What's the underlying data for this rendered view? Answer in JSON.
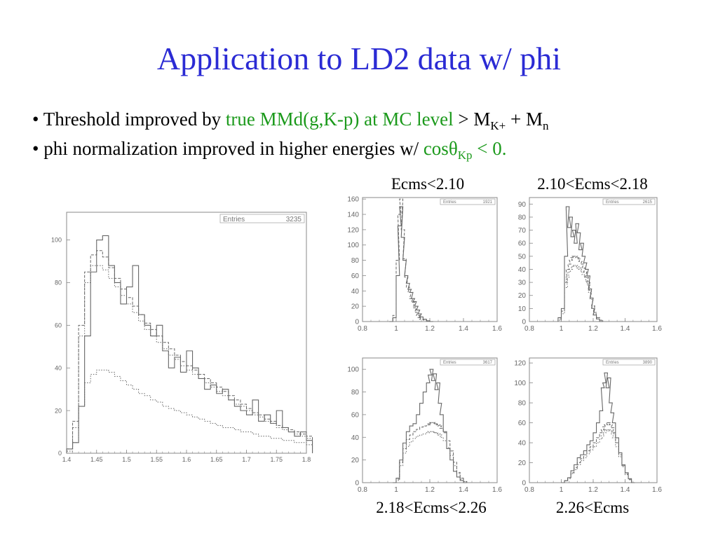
{
  "slide": {
    "title": "Application to LD2 data w/ phi",
    "bullet1": {
      "prefix": "• Threshold improved by ",
      "green_text": "true MMd(g,K-p) at MC level",
      "relation": " > M",
      "sub1": "K+",
      "plus": " + M",
      "sub2": "n"
    },
    "bullet2": {
      "prefix": "• phi normalization improved in higher energies w/ ",
      "green_text": "cosθ",
      "green_sub": "Kp",
      "green_tail": " < 0."
    }
  },
  "colors": {
    "title": "#2b2bd4",
    "green": "#1c9a1c",
    "hist": "#666666",
    "frame": "#888888"
  },
  "chart_data": [
    {
      "id": "large",
      "type": "histogram",
      "label": "",
      "stat_name": "Entries",
      "stat_value": "3235",
      "xlim": [
        1.4,
        1.8
      ],
      "ylim": [
        0,
        113
      ],
      "xticks": [
        "1.4",
        "1.45",
        "1.5",
        "1.55",
        "1.6",
        "1.65",
        "1.7",
        "1.75",
        "1.8"
      ],
      "yticks": [
        "0",
        "20",
        "40",
        "60",
        "80",
        "100"
      ],
      "series": [
        {
          "style": "solid",
          "x": [
            1.4,
            1.41,
            1.42,
            1.43,
            1.44,
            1.45,
            1.46,
            1.47,
            1.48,
            1.49,
            1.5,
            1.51,
            1.52,
            1.53,
            1.54,
            1.55,
            1.56,
            1.57,
            1.58,
            1.59,
            1.6,
            1.61,
            1.62,
            1.63,
            1.64,
            1.65,
            1.66,
            1.67,
            1.68,
            1.69,
            1.7,
            1.71,
            1.72,
            1.73,
            1.74,
            1.75,
            1.76,
            1.77,
            1.78,
            1.79,
            1.8
          ],
          "y": [
            2,
            5,
            22,
            55,
            85,
            100,
            102,
            88,
            80,
            70,
            78,
            88,
            65,
            60,
            55,
            60,
            48,
            40,
            45,
            38,
            48,
            40,
            35,
            30,
            32,
            28,
            30,
            25,
            22,
            20,
            18,
            25,
            15,
            18,
            14,
            20,
            12,
            10,
            8,
            10,
            6
          ]
        },
        {
          "style": "dashed",
          "x": [
            1.4,
            1.41,
            1.42,
            1.43,
            1.44,
            1.45,
            1.46,
            1.47,
            1.48,
            1.49,
            1.5,
            1.51,
            1.52,
            1.53,
            1.54,
            1.55,
            1.56,
            1.57,
            1.58,
            1.59,
            1.6,
            1.61,
            1.62,
            1.63,
            1.64,
            1.65,
            1.66,
            1.67,
            1.68,
            1.69,
            1.7,
            1.71,
            1.72,
            1.73,
            1.74,
            1.75,
            1.76,
            1.77,
            1.78,
            1.79,
            1.8
          ],
          "y": [
            2,
            15,
            60,
            85,
            93,
            95,
            92,
            87,
            82,
            77,
            73,
            69,
            65,
            61,
            58,
            55,
            52,
            49,
            46,
            43,
            41,
            39,
            37,
            35,
            33,
            31,
            29,
            27,
            25,
            23,
            21,
            19,
            18,
            16,
            15,
            13,
            12,
            11,
            10,
            9,
            8
          ]
        },
        {
          "style": "dotted",
          "x": [
            1.4,
            1.41,
            1.42,
            1.43,
            1.44,
            1.45,
            1.46,
            1.47,
            1.48,
            1.49,
            1.5,
            1.51,
            1.52,
            1.53,
            1.54,
            1.55,
            1.56,
            1.57,
            1.58,
            1.59,
            1.6,
            1.61,
            1.62,
            1.63,
            1.64,
            1.65,
            1.66,
            1.67,
            1.68,
            1.69,
            1.7,
            1.71,
            1.72,
            1.73,
            1.74,
            1.75,
            1.76,
            1.77,
            1.78,
            1.79,
            1.8
          ],
          "y": [
            1,
            12,
            55,
            80,
            88,
            88,
            86,
            82,
            78,
            74,
            70,
            66,
            62,
            58,
            55,
            52,
            49,
            46,
            44,
            41,
            39,
            37,
            35,
            33,
            31,
            29,
            27,
            25,
            23,
            22,
            20,
            18,
            17,
            15,
            14,
            12,
            11,
            10,
            9,
            8,
            7
          ]
        },
        {
          "style": "dotted",
          "x": [
            1.4,
            1.41,
            1.42,
            1.43,
            1.44,
            1.45,
            1.46,
            1.47,
            1.48,
            1.49,
            1.5,
            1.51,
            1.52,
            1.53,
            1.54,
            1.55,
            1.56,
            1.57,
            1.58,
            1.59,
            1.6,
            1.61,
            1.62,
            1.63,
            1.64,
            1.65,
            1.66,
            1.67,
            1.68,
            1.69,
            1.7,
            1.71,
            1.72,
            1.73,
            1.74,
            1.75,
            1.76,
            1.77,
            1.78,
            1.79,
            1.8
          ],
          "y": [
            1,
            5,
            22,
            33,
            37,
            39,
            39,
            38,
            36,
            34,
            32,
            30,
            28,
            27,
            25,
            24,
            22,
            21,
            20,
            19,
            18,
            17,
            16,
            15,
            14,
            13,
            12,
            12,
            11,
            10,
            10,
            9,
            8,
            8,
            7,
            7,
            6,
            6,
            5,
            5,
            4
          ]
        }
      ]
    },
    {
      "id": "p1",
      "type": "histogram",
      "label": "Ecms<2.10",
      "stat_name": "Entries",
      "stat_value": "1921",
      "xlim": [
        0.8,
        1.6
      ],
      "ylim": [
        0,
        162
      ],
      "xticks": [
        "0.8",
        "1",
        "1.2",
        "1.4",
        "1.6"
      ],
      "yticks": [
        "0",
        "20",
        "40",
        "60",
        "80",
        "100",
        "120",
        "140",
        "160"
      ],
      "series": [
        {
          "style": "solid",
          "x": [
            0.96,
            0.98,
            1.0,
            1.01,
            1.02,
            1.03,
            1.04,
            1.05,
            1.06,
            1.07,
            1.08,
            1.09,
            1.1,
            1.11,
            1.12,
            1.13,
            1.14,
            1.16,
            1.18,
            1.2
          ],
          "y": [
            0,
            5,
            60,
            125,
            150,
            110,
            80,
            60,
            50,
            42,
            38,
            30,
            26,
            20,
            15,
            10,
            6,
            3,
            1,
            0
          ]
        },
        {
          "style": "dashed",
          "x": [
            0.96,
            0.98,
            1.0,
            1.01,
            1.02,
            1.03,
            1.04,
            1.05,
            1.06,
            1.07,
            1.08,
            1.09,
            1.1,
            1.11,
            1.12,
            1.13,
            1.14,
            1.16,
            1.18,
            1.2
          ],
          "y": [
            0,
            8,
            80,
            140,
            160,
            120,
            82,
            58,
            45,
            38,
            30,
            25,
            18,
            12,
            8,
            5,
            3,
            2,
            1,
            0
          ]
        }
      ]
    },
    {
      "id": "p2",
      "type": "histogram",
      "label": "2.10<Ecms<2.18",
      "stat_name": "Entries",
      "stat_value": "2615",
      "xlim": [
        0.8,
        1.6
      ],
      "ylim": [
        0,
        95
      ],
      "xticks": [
        "0.8",
        "1",
        "1.2",
        "1.4",
        "1.6"
      ],
      "yticks": [
        "0",
        "10",
        "20",
        "30",
        "40",
        "50",
        "60",
        "70",
        "80",
        "90"
      ],
      "series": [
        {
          "style": "solid",
          "x": [
            0.98,
            1.0,
            1.02,
            1.03,
            1.04,
            1.05,
            1.06,
            1.07,
            1.08,
            1.09,
            1.1,
            1.11,
            1.12,
            1.13,
            1.14,
            1.15,
            1.16,
            1.17,
            1.18,
            1.19,
            1.2,
            1.22,
            1.24
          ],
          "y": [
            3,
            10,
            50,
            88,
            72,
            80,
            65,
            70,
            60,
            75,
            68,
            55,
            60,
            50,
            45,
            40,
            35,
            25,
            18,
            10,
            5,
            2,
            0
          ]
        },
        {
          "style": "dashed",
          "x": [
            0.98,
            1.0,
            1.02,
            1.03,
            1.04,
            1.05,
            1.06,
            1.07,
            1.08,
            1.09,
            1.1,
            1.11,
            1.12,
            1.13,
            1.14,
            1.15,
            1.16,
            1.17,
            1.18,
            1.19,
            1.2,
            1.22,
            1.24
          ],
          "y": [
            2,
            8,
            30,
            40,
            44,
            47,
            49,
            50,
            50,
            49,
            48,
            46,
            44,
            41,
            38,
            34,
            30,
            24,
            18,
            12,
            7,
            3,
            1
          ]
        },
        {
          "style": "dotted",
          "x": [
            0.98,
            1.0,
            1.02,
            1.03,
            1.04,
            1.05,
            1.06,
            1.07,
            1.08,
            1.09,
            1.1,
            1.11,
            1.12,
            1.13,
            1.14,
            1.15,
            1.16,
            1.17,
            1.18,
            1.19,
            1.2,
            1.22,
            1.24
          ],
          "y": [
            1,
            6,
            26,
            34,
            38,
            40,
            42,
            43,
            43,
            42,
            41,
            40,
            38,
            36,
            34,
            31,
            28,
            22,
            17,
            11,
            6,
            3,
            1
          ]
        }
      ]
    },
    {
      "id": "p3",
      "type": "histogram",
      "label": "2.18<Ecms<2.26",
      "stat_name": "Entries",
      "stat_value": "3617",
      "xlim": [
        0.8,
        1.6
      ],
      "ylim": [
        0,
        110
      ],
      "xticks": [
        "0.8",
        "1",
        "1.2",
        "1.4",
        "1.6"
      ],
      "yticks": [
        "0",
        "20",
        "40",
        "60",
        "80",
        "100"
      ],
      "series": [
        {
          "style": "solid",
          "x": [
            0.98,
            1.0,
            1.02,
            1.04,
            1.06,
            1.08,
            1.1,
            1.12,
            1.14,
            1.16,
            1.18,
            1.19,
            1.2,
            1.21,
            1.22,
            1.23,
            1.24,
            1.25,
            1.26,
            1.28,
            1.3,
            1.32,
            1.34,
            1.36,
            1.38,
            1.4
          ],
          "y": [
            0,
            4,
            20,
            35,
            45,
            50,
            52,
            60,
            70,
            80,
            88,
            95,
            100,
            90,
            96,
            82,
            88,
            70,
            60,
            45,
            30,
            20,
            10,
            5,
            2,
            0
          ]
        },
        {
          "style": "dashed",
          "x": [
            0.98,
            1.0,
            1.02,
            1.04,
            1.06,
            1.08,
            1.1,
            1.12,
            1.14,
            1.16,
            1.18,
            1.19,
            1.2,
            1.21,
            1.22,
            1.23,
            1.24,
            1.25,
            1.26,
            1.28,
            1.3,
            1.32,
            1.34,
            1.36,
            1.38,
            1.4
          ],
          "y": [
            0,
            3,
            18,
            30,
            38,
            42,
            45,
            47,
            49,
            50,
            51,
            52,
            53,
            53,
            52,
            52,
            51,
            50,
            48,
            44,
            37,
            28,
            18,
            9,
            4,
            1
          ]
        },
        {
          "style": "dotted",
          "x": [
            0.98,
            1.0,
            1.02,
            1.04,
            1.06,
            1.08,
            1.1,
            1.12,
            1.14,
            1.16,
            1.18,
            1.19,
            1.2,
            1.21,
            1.22,
            1.23,
            1.24,
            1.25,
            1.26,
            1.28,
            1.3,
            1.32,
            1.34,
            1.36,
            1.38,
            1.4
          ],
          "y": [
            0,
            2,
            15,
            26,
            32,
            36,
            39,
            41,
            42,
            43,
            44,
            45,
            45,
            45,
            44,
            44,
            43,
            42,
            40,
            37,
            31,
            24,
            15,
            8,
            3,
            1
          ]
        }
      ]
    },
    {
      "id": "p4",
      "type": "histogram",
      "label": "2.26<Ecms",
      "stat_name": "Entries",
      "stat_value": "3890",
      "xlim": [
        0.8,
        1.6
      ],
      "ylim": [
        0,
        125
      ],
      "xticks": [
        "0.8",
        "1",
        "1.2",
        "1.4",
        "1.6"
      ],
      "yticks": [
        "0",
        "20",
        "40",
        "60",
        "80",
        "100",
        "120"
      ],
      "series": [
        {
          "style": "solid",
          "x": [
            1.0,
            1.02,
            1.04,
            1.06,
            1.08,
            1.1,
            1.12,
            1.14,
            1.16,
            1.18,
            1.2,
            1.22,
            1.24,
            1.25,
            1.26,
            1.27,
            1.28,
            1.29,
            1.3,
            1.31,
            1.32,
            1.34,
            1.36,
            1.38,
            1.4,
            1.42,
            1.44
          ],
          "y": [
            0,
            2,
            5,
            12,
            18,
            25,
            28,
            32,
            38,
            42,
            50,
            60,
            72,
            95,
            100,
            110,
            95,
            105,
            80,
            70,
            60,
            45,
            30,
            18,
            10,
            4,
            0
          ]
        },
        {
          "style": "dashed",
          "x": [
            1.0,
            1.02,
            1.04,
            1.06,
            1.08,
            1.1,
            1.12,
            1.14,
            1.16,
            1.18,
            1.2,
            1.22,
            1.24,
            1.25,
            1.26,
            1.27,
            1.28,
            1.29,
            1.3,
            1.31,
            1.32,
            1.34,
            1.36,
            1.38,
            1.4,
            1.42,
            1.44
          ],
          "y": [
            0,
            2,
            5,
            10,
            15,
            20,
            24,
            28,
            32,
            36,
            40,
            45,
            50,
            53,
            56,
            58,
            60,
            60,
            58,
            55,
            50,
            40,
            28,
            17,
            9,
            3,
            0
          ]
        },
        {
          "style": "dotted",
          "x": [
            1.0,
            1.02,
            1.04,
            1.06,
            1.08,
            1.1,
            1.12,
            1.14,
            1.16,
            1.18,
            1.2,
            1.22,
            1.24,
            1.25,
            1.26,
            1.27,
            1.28,
            1.29,
            1.3,
            1.31,
            1.32,
            1.34,
            1.36,
            1.38,
            1.4,
            1.42,
            1.44
          ],
          "y": [
            0,
            2,
            4,
            9,
            13,
            18,
            22,
            25,
            29,
            33,
            36,
            40,
            44,
            47,
            50,
            52,
            53,
            53,
            52,
            49,
            45,
            36,
            26,
            16,
            8,
            3,
            0
          ]
        }
      ]
    }
  ]
}
